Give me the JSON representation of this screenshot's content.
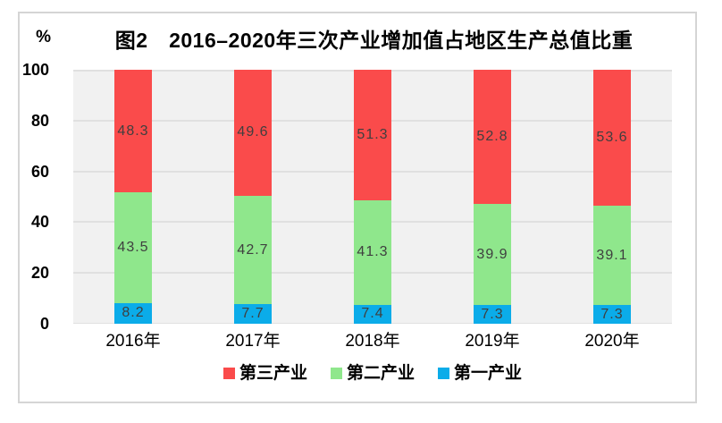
{
  "figure": {
    "title": "图2　2016–2020年三次产业增加值占地区生产总值比重",
    "y_axis_unit": "%"
  },
  "chart_data": {
    "type": "bar",
    "stacked": true,
    "title": "图2　2016–2020年三次产业增加值占地区生产总值比重",
    "ylabel": "%",
    "xlabel": "",
    "categories": [
      "2016年",
      "2017年",
      "2018年",
      "2019年",
      "2020年"
    ],
    "series": [
      {
        "name": "第一产业",
        "color": "#0bace9",
        "values": [
          8.2,
          7.7,
          7.4,
          7.3,
          7.3
        ]
      },
      {
        "name": "第二产业",
        "color": "#8fe78c",
        "values": [
          43.5,
          42.7,
          41.3,
          39.9,
          39.1
        ]
      },
      {
        "name": "第三产业",
        "color": "#fa4b4b",
        "values": [
          48.3,
          49.6,
          51.3,
          52.8,
          53.6
        ]
      }
    ],
    "legend_order": [
      "第三产业",
      "第二产业",
      "第一产业"
    ],
    "legend_position": "bottom",
    "ylim": [
      0,
      100
    ],
    "yticks": [
      0,
      20,
      40,
      60,
      80,
      100
    ],
    "grid": true,
    "value_labels_shown": true
  },
  "colors": {
    "plot_background": "#f1f1f1",
    "gridline": "#e0e0e0",
    "frame_border": "#d5d5d5",
    "value_label_text": "#3f3f3f",
    "axis_text": "#000000"
  }
}
